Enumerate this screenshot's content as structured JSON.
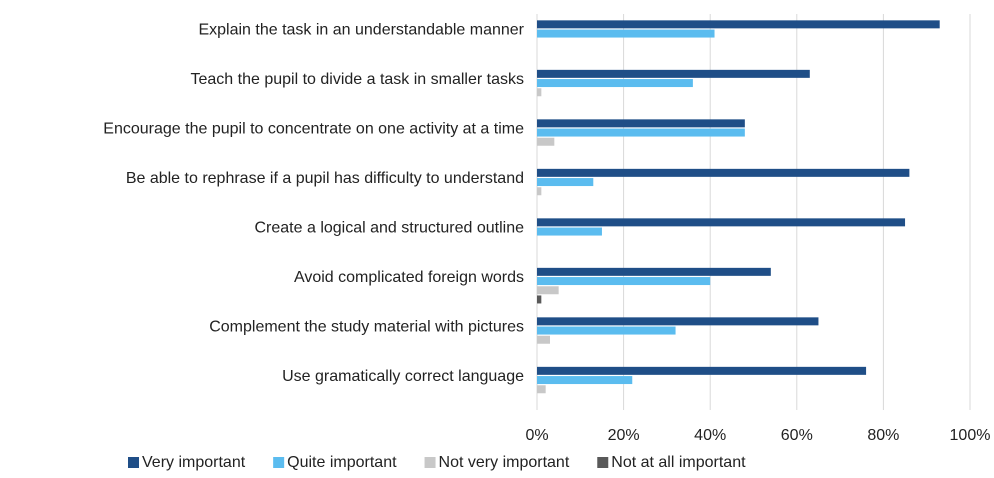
{
  "chart_data": {
    "type": "hbar",
    "categories": [
      "Explain the task in an understandable manner",
      "Teach the pupil to divide a task in smaller tasks",
      "Encourage the pupil to concentrate on one activity at a time",
      "Be able to rephrase if a pupil has difficulty to understand",
      "Create a logical and structured outline",
      "Avoid complicated foreign words",
      "Complement the study material with pictures",
      "Use gramatically correct language"
    ],
    "series": [
      {
        "name": "Very important",
        "color": "#1f4e87",
        "values": [
          93,
          63,
          48,
          86,
          85,
          54,
          65,
          76
        ]
      },
      {
        "name": "Quite important",
        "color": "#5bbcef",
        "values": [
          41,
          36,
          48,
          13,
          15,
          40,
          32,
          22
        ]
      },
      {
        "name": "Not very important",
        "color": "#c8c8c8",
        "values": [
          0,
          1,
          4,
          1,
          0,
          5,
          3,
          2
        ]
      },
      {
        "name": "Not at all important",
        "color": "#595959",
        "values": [
          0,
          0,
          0,
          0,
          0,
          1,
          0,
          0
        ]
      }
    ],
    "xlim": [
      0,
      100
    ],
    "xticks": [
      {
        "value": 0,
        "label": "0%"
      },
      {
        "value": 20,
        "label": "20%"
      },
      {
        "value": 40,
        "label": "40%"
      },
      {
        "value": 60,
        "label": "60%"
      },
      {
        "value": 80,
        "label": "80%"
      },
      {
        "value": 100,
        "label": "100%"
      }
    ],
    "grid": true,
    "legend": "bottom"
  }
}
